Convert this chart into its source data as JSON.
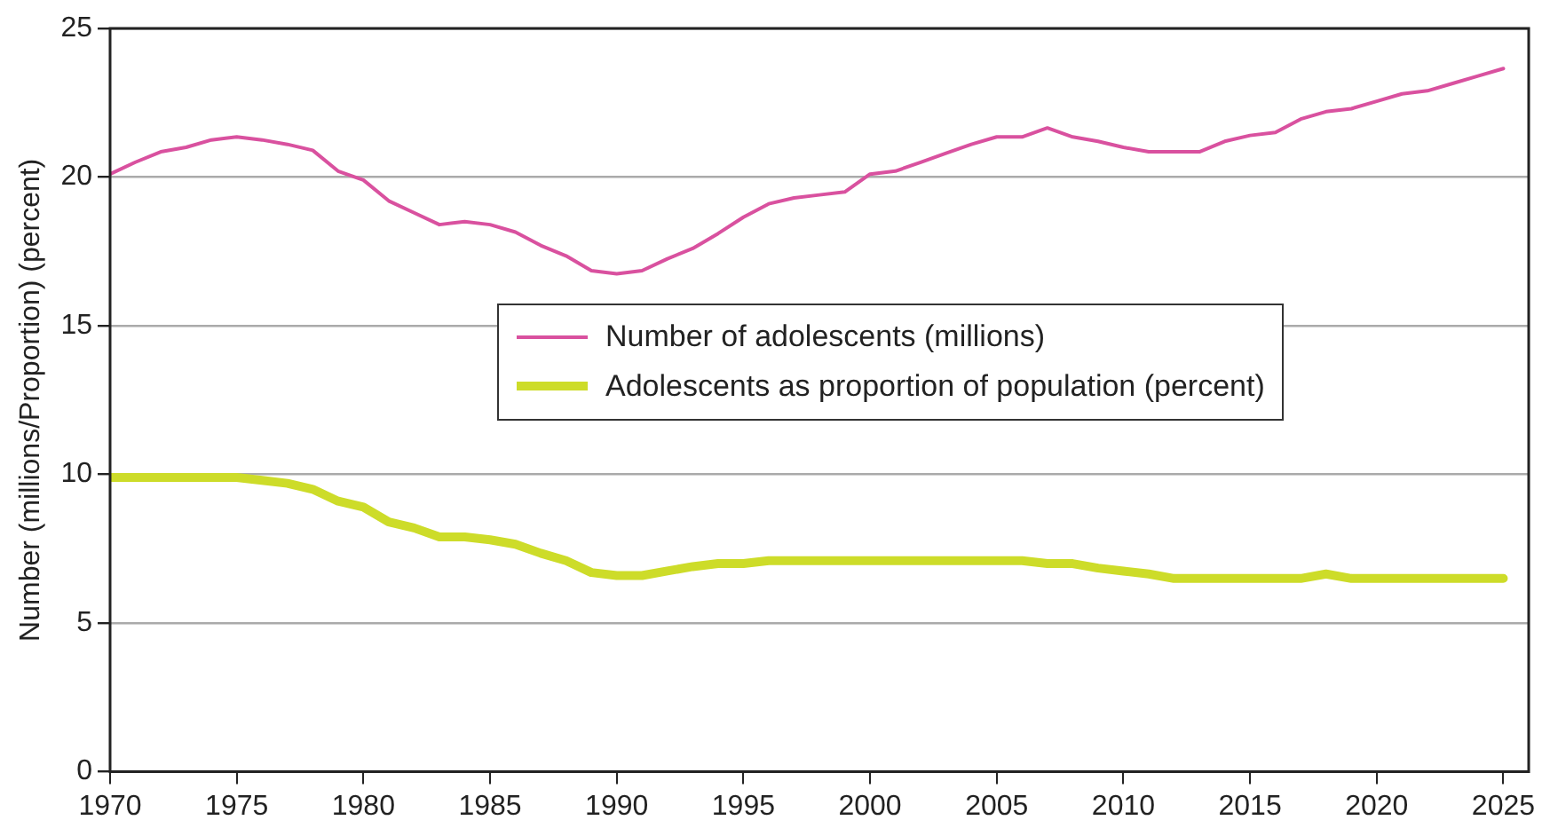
{
  "chart_data": {
    "type": "line",
    "ylabel": "Number (millions/Proportion) (percent)",
    "x": [
      1970,
      1971,
      1972,
      1973,
      1974,
      1975,
      1976,
      1977,
      1978,
      1979,
      1980,
      1981,
      1982,
      1983,
      1984,
      1985,
      1986,
      1987,
      1988,
      1989,
      1990,
      1991,
      1992,
      1993,
      1994,
      1995,
      1996,
      1997,
      1998,
      1999,
      2000,
      2001,
      2002,
      2003,
      2004,
      2005,
      2006,
      2007,
      2008,
      2009,
      2010,
      2011,
      2012,
      2013,
      2014,
      2015,
      2016,
      2017,
      2018,
      2019,
      2020,
      2021,
      2022,
      2023,
      2024,
      2025
    ],
    "series": [
      {
        "name": "Number of adolescents (millions)",
        "color": "#d9519f",
        "values": [
          20.1,
          20.5,
          20.85,
          21.0,
          21.25,
          21.35,
          21.25,
          21.1,
          20.9,
          20.2,
          19.9,
          19.2,
          18.8,
          18.4,
          18.5,
          18.4,
          18.15,
          17.7,
          17.35,
          16.85,
          16.75,
          16.85,
          17.25,
          17.6,
          18.1,
          18.65,
          19.1,
          19.3,
          19.4,
          19.5,
          20.1,
          20.2,
          20.5,
          20.8,
          21.1,
          21.35,
          21.35,
          21.65,
          21.35,
          21.2,
          21.0,
          20.85,
          20.85,
          20.85,
          21.2,
          21.4,
          21.5,
          21.95,
          22.2,
          22.3,
          22.55,
          22.8,
          22.9,
          23.15,
          23.4,
          23.65
        ]
      },
      {
        "name": "Adolescents as proportion of population (percent)",
        "color": "#cddc29",
        "values": [
          9.9,
          9.9,
          9.9,
          9.9,
          9.9,
          9.9,
          9.8,
          9.7,
          9.5,
          9.1,
          8.9,
          8.4,
          8.2,
          7.9,
          7.9,
          7.8,
          7.65,
          7.35,
          7.1,
          6.7,
          6.6,
          6.6,
          6.75,
          6.9,
          7.0,
          7.0,
          7.1,
          7.1,
          7.1,
          7.1,
          7.1,
          7.1,
          7.1,
          7.1,
          7.1,
          7.1,
          7.1,
          7.0,
          7.0,
          6.85,
          6.75,
          6.65,
          6.5,
          6.5,
          6.5,
          6.5,
          6.5,
          6.5,
          6.65,
          6.5,
          6.5,
          6.5,
          6.5,
          6.5,
          6.5,
          6.5
        ]
      }
    ],
    "xlim": [
      1970,
      2026
    ],
    "xticks": [
      1970,
      1975,
      1980,
      1985,
      1990,
      1995,
      2000,
      2005,
      2010,
      2015,
      2020,
      2025
    ],
    "ylim": [
      0,
      25
    ],
    "yticks": [
      0,
      5,
      10,
      15,
      20,
      25
    ],
    "grid": "y",
    "legend": "center",
    "marker": "none",
    "line_style": "solid"
  }
}
